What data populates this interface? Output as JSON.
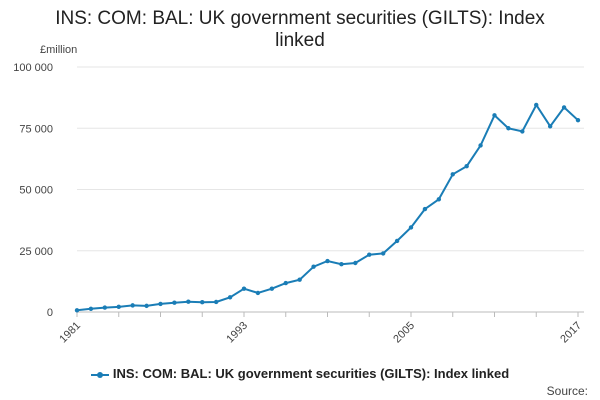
{
  "chart_data": {
    "type": "line",
    "title": "INS: COM: BAL: UK government securities (GILTS): Index linked",
    "ylabel": "£million",
    "xlabel": "",
    "x_start": 1981,
    "x_step": 1,
    "ylim": [
      0,
      100000
    ],
    "y_ticks": [
      0,
      25000,
      50000,
      75000,
      100000
    ],
    "y_tick_labels": [
      "0",
      "25 000",
      "50 000",
      "75 000",
      "100 000"
    ],
    "x_tick_labels": [
      "1981",
      "1993",
      "2005",
      "2017"
    ],
    "series": [
      {
        "name": "INS: COM: BAL: UK government securities (GILTS): Index linked",
        "color": "#1a7db6",
        "values": [
          700,
          1300,
          1800,
          2100,
          2700,
          2500,
          3300,
          3800,
          4200,
          4000,
          4100,
          6000,
          9500,
          7800,
          9500,
          11800,
          13200,
          18500,
          20800,
          19500,
          20000,
          23400,
          23900,
          29000,
          34500,
          42000,
          46000,
          56200,
          59500,
          68000,
          80300,
          75000,
          73700,
          84500,
          75800,
          83500,
          78300
        ]
      }
    ]
  },
  "legend": {
    "label": "INS: COM: BAL: UK government securities (GILTS): Index linked"
  },
  "footer": {
    "source": "Source:"
  }
}
